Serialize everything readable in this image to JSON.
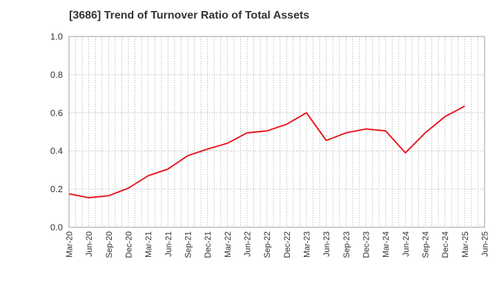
{
  "chart_data": {
    "type": "line",
    "title": "[3686]  Trend of Turnover Ratio of Total Assets",
    "xlabel": "",
    "ylabel": "",
    "ylim": [
      0.0,
      1.0
    ],
    "yticks": [
      "0.0",
      "0.2",
      "0.4",
      "0.6",
      "0.8",
      "1.0"
    ],
    "xticks": [
      "Mar-20",
      "Jun-20",
      "Sep-20",
      "Dec-20",
      "Mar-21",
      "Jun-21",
      "Sep-21",
      "Dec-21",
      "Mar-22",
      "Jun-22",
      "Sep-22",
      "Dec-22",
      "Mar-23",
      "Jun-23",
      "Sep-23",
      "Dec-23",
      "Mar-24",
      "Jun-24",
      "Sep-24",
      "Dec-24",
      "Mar-25",
      "Jun-25"
    ],
    "grid": true,
    "series": [
      {
        "color": "#e8141c",
        "x": [
          "Mar-20",
          "Jun-20",
          "Sep-20",
          "Dec-20",
          "Mar-21",
          "Jun-21",
          "Sep-21",
          "Dec-21",
          "Mar-22",
          "Jun-22",
          "Sep-22",
          "Dec-22",
          "Mar-23",
          "Jun-23",
          "Sep-23",
          "Dec-23",
          "Mar-24",
          "Jun-24",
          "Sep-24",
          "Dec-24",
          "Mar-25"
        ],
        "values": [
          0.175,
          0.155,
          0.165,
          0.205,
          0.27,
          0.305,
          0.375,
          0.41,
          0.44,
          0.495,
          0.505,
          0.54,
          0.6,
          0.455,
          0.495,
          0.515,
          0.505,
          0.39,
          0.495,
          0.58,
          0.635
        ]
      }
    ]
  }
}
